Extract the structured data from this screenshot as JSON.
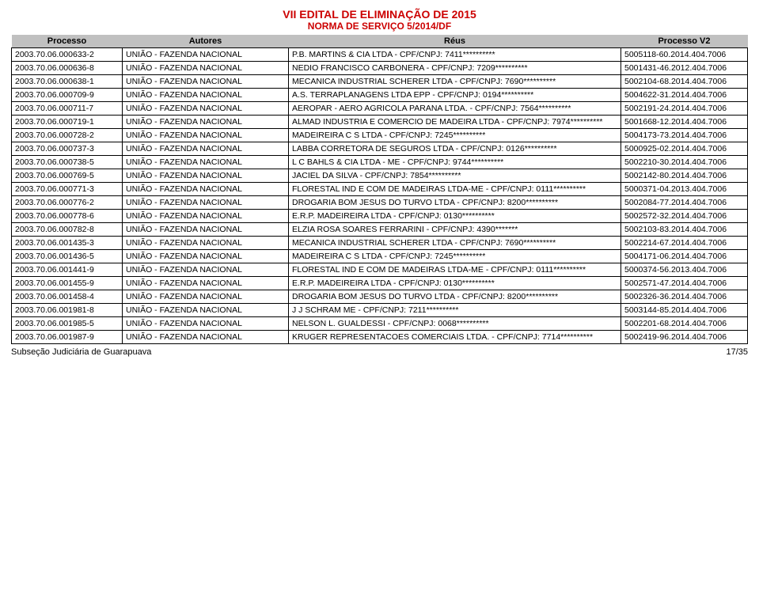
{
  "header": {
    "title": "VII EDITAL DE ELIMINAÇÃO DE 2015",
    "subtitle": "NORMA DE SERVIÇO 5/2014/DF"
  },
  "columns": {
    "processo": "Processo",
    "autores": "Autores",
    "reus": "Réus",
    "v2": "Processo V2"
  },
  "rows": [
    {
      "p": "2003.70.06.000633-2",
      "a": "UNIÃO - FAZENDA NACIONAL",
      "r": "P.B. MARTINS & CIA LTDA - CPF/CNPJ: 7411**********",
      "v": "5005118-60.2014.404.7006"
    },
    {
      "p": "2003.70.06.000636-8",
      "a": "UNIÃO - FAZENDA NACIONAL",
      "r": "NEDIO FRANCISCO CARBONERA - CPF/CNPJ: 7209**********",
      "v": "5001431-46.2012.404.7006"
    },
    {
      "p": "2003.70.06.000638-1",
      "a": "UNIÃO - FAZENDA NACIONAL",
      "r": "MECANICA INDUSTRIAL SCHERER LTDA - CPF/CNPJ: 7690**********",
      "v": "5002104-68.2014.404.7006"
    },
    {
      "p": "2003.70.06.000709-9",
      "a": "UNIÃO - FAZENDA NACIONAL",
      "r": "A.S. TERRAPLANAGENS LTDA EPP - CPF/CNPJ: 0194**********",
      "v": "5004622-31.2014.404.7006"
    },
    {
      "p": "2003.70.06.000711-7",
      "a": "UNIÃO - FAZENDA NACIONAL",
      "r": "AEROPAR - AERO AGRICOLA PARANA LTDA. - CPF/CNPJ: 7564**********",
      "v": "5002191-24.2014.404.7006"
    },
    {
      "p": "2003.70.06.000719-1",
      "a": "UNIÃO - FAZENDA NACIONAL",
      "r": "ALMAD INDUSTRIA E COMERCIO DE MADEIRA LTDA - CPF/CNPJ: 7974**********",
      "v": "5001668-12.2014.404.7006"
    },
    {
      "p": "2003.70.06.000728-2",
      "a": "UNIÃO - FAZENDA NACIONAL",
      "r": "MADEIREIRA C S LTDA - CPF/CNPJ: 7245**********",
      "v": "5004173-73.2014.404.7006"
    },
    {
      "p": "2003.70.06.000737-3",
      "a": "UNIÃO - FAZENDA NACIONAL",
      "r": "LABBA CORRETORA DE SEGUROS LTDA - CPF/CNPJ: 0126**********",
      "v": "5000925-02.2014.404.7006"
    },
    {
      "p": "2003.70.06.000738-5",
      "a": "UNIÃO - FAZENDA NACIONAL",
      "r": "L C BAHLS & CIA LTDA - ME - CPF/CNPJ: 9744**********",
      "v": "5002210-30.2014.404.7006"
    },
    {
      "p": "2003.70.06.000769-5",
      "a": "UNIÃO - FAZENDA NACIONAL",
      "r": "JACIEL DA SILVA - CPF/CNPJ: 7854**********",
      "v": "5002142-80.2014.404.7006"
    },
    {
      "p": "2003.70.06.000771-3",
      "a": "UNIÃO - FAZENDA NACIONAL",
      "r": "FLORESTAL IND E COM DE MADEIRAS LTDA-ME - CPF/CNPJ: 0111**********",
      "v": "5000371-04.2013.404.7006"
    },
    {
      "p": "2003.70.06.000776-2",
      "a": "UNIÃO - FAZENDA NACIONAL",
      "r": "DROGARIA BOM JESUS DO TURVO LTDA - CPF/CNPJ: 8200**********",
      "v": "5002084-77.2014.404.7006"
    },
    {
      "p": "2003.70.06.000778-6",
      "a": "UNIÃO - FAZENDA NACIONAL",
      "r": "E.R.P. MADEIREIRA LTDA - CPF/CNPJ: 0130**********",
      "v": "5002572-32.2014.404.7006"
    },
    {
      "p": "2003.70.06.000782-8",
      "a": "UNIÃO - FAZENDA NACIONAL",
      "r": "ELZIA ROSA SOARES FERRARINI - CPF/CNPJ: 4390*******",
      "v": "5002103-83.2014.404.7006"
    },
    {
      "p": "2003.70.06.001435-3",
      "a": "UNIÃO - FAZENDA NACIONAL",
      "r": "MECANICA INDUSTRIAL SCHERER LTDA - CPF/CNPJ: 7690**********",
      "v": "5002214-67.2014.404.7006"
    },
    {
      "p": "2003.70.06.001436-5",
      "a": "UNIÃO - FAZENDA NACIONAL",
      "r": "MADEIREIRA C S LTDA - CPF/CNPJ: 7245**********",
      "v": "5004171-06.2014.404.7006"
    },
    {
      "p": "2003.70.06.001441-9",
      "a": "UNIÃO - FAZENDA NACIONAL",
      "r": "FLORESTAL IND E COM DE MADEIRAS LTDA-ME - CPF/CNPJ: 0111**********",
      "v": "5000374-56.2013.404.7006"
    },
    {
      "p": "2003.70.06.001455-9",
      "a": "UNIÃO - FAZENDA NACIONAL",
      "r": "E.R.P. MADEIREIRA LTDA - CPF/CNPJ: 0130**********",
      "v": "5002571-47.2014.404.7006"
    },
    {
      "p": "2003.70.06.001458-4",
      "a": "UNIÃO - FAZENDA NACIONAL",
      "r": "DROGARIA BOM JESUS DO TURVO LTDA - CPF/CNPJ: 8200**********",
      "v": "5002326-36.2014.404.7006"
    },
    {
      "p": "2003.70.06.001981-8",
      "a": "UNIÃO - FAZENDA NACIONAL",
      "r": "J J SCHRAM ME - CPF/CNPJ: 7211**********",
      "v": "5003144-85.2014.404.7006"
    },
    {
      "p": "2003.70.06.001985-5",
      "a": "UNIÃO - FAZENDA NACIONAL",
      "r": "NELSON L. GUALDESSI - CPF/CNPJ: 0068**********",
      "v": "5002201-68.2014.404.7006"
    },
    {
      "p": "2003.70.06.001987-9",
      "a": "UNIÃO - FAZENDA NACIONAL",
      "r": "KRUGER REPRESENTACOES COMERCIAIS LTDA. - CPF/CNPJ: 7714**********",
      "v": "5002419-96.2014.404.7006"
    }
  ],
  "footer": {
    "left": "Subseção Judiciária de Guarapuava",
    "right": "17/35"
  },
  "style": {
    "title_color": "#cc0000",
    "header_bg": "#c0c0c0",
    "border_color": "#000000"
  }
}
